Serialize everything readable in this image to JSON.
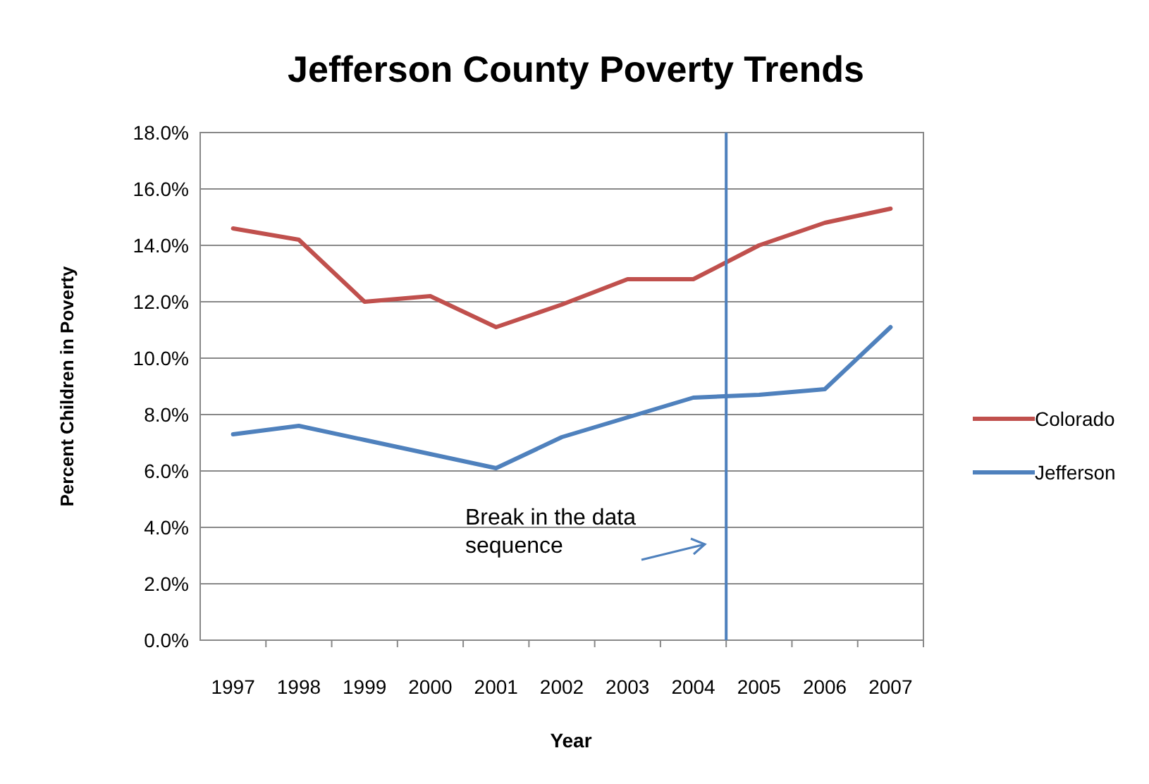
{
  "chart_data": {
    "type": "line",
    "title": "Jefferson County Poverty Trends",
    "xlabel": "Year",
    "ylabel": "Percent Children in Poverty",
    "x": [
      1997,
      1998,
      1999,
      2000,
      2001,
      2002,
      2003,
      2004,
      2005,
      2006,
      2007
    ],
    "xlim": [
      1996.5,
      2007.5
    ],
    "xticks": [
      1997,
      1998,
      1999,
      2000,
      2001,
      2002,
      2003,
      2004,
      2005,
      2006,
      2007
    ],
    "ylim": [
      0,
      18
    ],
    "yticks": [
      {
        "value": 0,
        "label": "0.0%"
      },
      {
        "value": 2,
        "label": "2.0%"
      },
      {
        "value": 4,
        "label": "4.0%"
      },
      {
        "value": 6,
        "label": "6.0%"
      },
      {
        "value": 8,
        "label": "8.0%"
      },
      {
        "value": 10,
        "label": "10.0%"
      },
      {
        "value": 12,
        "label": "12.0%"
      },
      {
        "value": 14,
        "label": "14.0%"
      },
      {
        "value": 16,
        "label": "16.0%"
      },
      {
        "value": 18,
        "label": "18.0%"
      }
    ],
    "series": [
      {
        "name": "Colorado",
        "color": "#c0504d",
        "values": [
          14.6,
          14.2,
          12.0,
          12.2,
          11.1,
          11.9,
          12.8,
          12.8,
          14.0,
          14.8,
          15.3
        ]
      },
      {
        "name": "Jefferson",
        "color": "#4f81bd",
        "values": [
          7.3,
          7.6,
          7.1,
          6.6,
          6.1,
          7.2,
          7.9,
          8.6,
          8.7,
          8.9,
          11.1
        ]
      }
    ],
    "ref_lines": [
      {
        "axis": "x",
        "value": 2004.5,
        "color": "#4f81bd"
      }
    ],
    "annotations": [
      "Break in the data sequence"
    ],
    "grid": "y",
    "legend": "right",
    "marker": "none",
    "line_style": "solid"
  }
}
